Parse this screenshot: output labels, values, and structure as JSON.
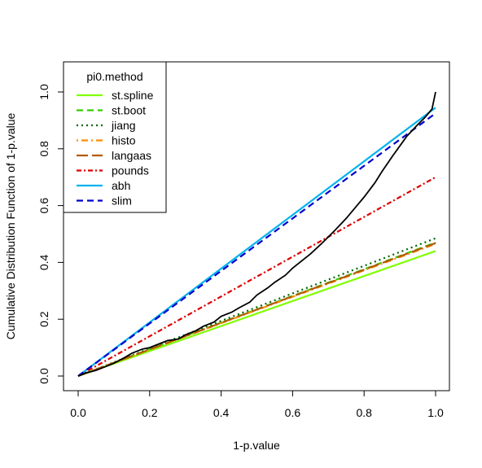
{
  "chart_data": {
    "type": "line",
    "title": "",
    "xlabel": "1-p.value",
    "ylabel": "Cumulative Distribution Function of 1-p.value",
    "xlim": [
      0,
      1
    ],
    "ylim": [
      0,
      1
    ],
    "xticks": [
      "0.0",
      "0.2",
      "0.4",
      "0.6",
      "0.8",
      "1.0"
    ],
    "yticks": [
      "0.0",
      "0.2",
      "0.4",
      "0.6",
      "0.8",
      "1.0"
    ],
    "legend": {
      "title": "pi0.method",
      "position": "top-left",
      "entries": [
        {
          "label": "st.spline",
          "color": "#7FFF00",
          "dash": "solid"
        },
        {
          "label": "st.boot",
          "color": "#33CC00",
          "dash": "dashed"
        },
        {
          "label": "jiang",
          "color": "#006400",
          "dash": "dotted"
        },
        {
          "label": "histo",
          "color": "#FF8C00",
          "dash": "dotdash"
        },
        {
          "label": "langaas",
          "color": "#B35900",
          "dash": "longdash"
        },
        {
          "label": "pounds",
          "color": "#DD0000",
          "dash": "twodash"
        },
        {
          "label": "abh",
          "color": "#00B2EE",
          "dash": "solid"
        },
        {
          "label": "slim",
          "color": "#0000CD",
          "dash": "dashed"
        }
      ]
    },
    "series": [
      {
        "name": "st.spline",
        "color": "#7FFF00",
        "dash": "solid",
        "x": [
          0,
          1
        ],
        "y": [
          0,
          0.44
        ]
      },
      {
        "name": "st.boot",
        "color": "#33CC00",
        "dash": "dashed",
        "x": [
          0,
          1
        ],
        "y": [
          0,
          0.47
        ]
      },
      {
        "name": "jiang",
        "color": "#006400",
        "dash": "dotted",
        "x": [
          0,
          1
        ],
        "y": [
          0,
          0.485
        ]
      },
      {
        "name": "histo",
        "color": "#FF8C00",
        "dash": "dotdash",
        "x": [
          0,
          1
        ],
        "y": [
          0,
          0.465
        ]
      },
      {
        "name": "langaas",
        "color": "#B35900",
        "dash": "longdash",
        "x": [
          0,
          1
        ],
        "y": [
          0,
          0.468
        ]
      },
      {
        "name": "pounds",
        "color": "#DD0000",
        "dash": "twodash",
        "x": [
          0,
          1
        ],
        "y": [
          0,
          0.7
        ]
      },
      {
        "name": "abh",
        "color": "#00B2EE",
        "dash": "solid",
        "x": [
          0,
          1
        ],
        "y": [
          0,
          0.945
        ]
      },
      {
        "name": "slim",
        "color": "#0000CD",
        "dash": "dashed",
        "x": [
          0,
          1
        ],
        "y": [
          0,
          0.925
        ]
      }
    ],
    "ecdf": {
      "color": "#000000",
      "x": [
        0,
        0.02,
        0.05,
        0.08,
        0.1,
        0.13,
        0.15,
        0.18,
        0.2,
        0.23,
        0.25,
        0.28,
        0.3,
        0.33,
        0.35,
        0.38,
        0.4,
        0.43,
        0.45,
        0.48,
        0.5,
        0.53,
        0.55,
        0.58,
        0.6,
        0.63,
        0.65,
        0.68,
        0.7,
        0.72,
        0.75,
        0.78,
        0.8,
        0.83,
        0.85,
        0.88,
        0.9,
        0.92,
        0.95,
        0.97,
        0.99,
        1.0
      ],
      "y": [
        0,
        0.01,
        0.02,
        0.035,
        0.045,
        0.065,
        0.08,
        0.095,
        0.1,
        0.115,
        0.125,
        0.13,
        0.145,
        0.16,
        0.175,
        0.19,
        0.21,
        0.225,
        0.24,
        0.26,
        0.285,
        0.31,
        0.33,
        0.355,
        0.38,
        0.41,
        0.43,
        0.465,
        0.49,
        0.515,
        0.555,
        0.6,
        0.63,
        0.68,
        0.72,
        0.775,
        0.81,
        0.845,
        0.885,
        0.91,
        0.94,
        1.0
      ]
    }
  }
}
